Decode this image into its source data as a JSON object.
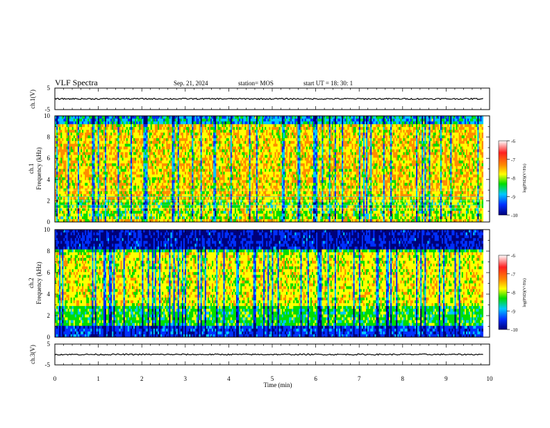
{
  "header": {
    "title": "VLF Spectra",
    "date": "Sep. 21, 2024",
    "station": "station= MOS",
    "start": "start  UT =   18: 30: 1"
  },
  "panels": {
    "ch1_waveform_label": "ch.1(V)",
    "ch1_spec_label_a": "ch.1",
    "ch1_spec_label_b": "Frequency (kHz)",
    "ch2_spec_label_a": "ch.2",
    "ch2_spec_label_b": "Frequency (kHz)",
    "ch3_waveform_label": "ch.3(V)",
    "xlabel": "Time (min)"
  },
  "colorbar": {
    "label": "log(PSD)(V²/Hz)",
    "ticks": [
      "-6",
      "-7",
      "-8",
      "-9",
      "-10"
    ],
    "colors": [
      "#ffffff",
      "#ff2020",
      "#ff8c00",
      "#ffff00",
      "#00dd00",
      "#00c8ff",
      "#0030ff",
      "#00007a"
    ]
  },
  "chart_data": [
    {
      "type": "line",
      "panel": "ch.1 waveform",
      "ylabel": "ch.1(V)",
      "ylim": [
        -5,
        5
      ],
      "yticks": [
        "5",
        "-5"
      ],
      "xlim": [
        0,
        10
      ],
      "description_values": {
        "x": [
          0,
          9.85
        ],
        "y": [
          0,
          0
        ]
      }
    },
    {
      "type": "heatmap",
      "panel": "ch.1 spectrogram",
      "ylabel": "Frequency (kHz)",
      "ylim": [
        0,
        10
      ],
      "yticks": [
        "0",
        "2",
        "4",
        "6",
        "8",
        "10"
      ],
      "xlim": [
        0,
        10
      ],
      "time_extent_min": 9.85,
      "clim": [
        -10,
        -6
      ]
    },
    {
      "type": "heatmap",
      "panel": "ch.2 spectrogram",
      "ylabel": "Frequency (kHz)",
      "ylim": [
        0,
        10
      ],
      "yticks": [
        "0",
        "2",
        "4",
        "6",
        "8",
        "10"
      ],
      "xlim": [
        0,
        10
      ],
      "time_extent_min": 9.85,
      "clim": [
        -10,
        -6
      ]
    },
    {
      "type": "line",
      "panel": "ch.3 waveform",
      "ylabel": "ch.3(V)",
      "ylim": [
        -5,
        5
      ],
      "yticks": [
        "5",
        "-5"
      ],
      "xlim": [
        0,
        10
      ],
      "description_values": {
        "x": [
          0,
          9.85
        ],
        "y": [
          0,
          0
        ]
      }
    },
    {
      "type": "axis",
      "xlabel": "Time (min)",
      "xticks": [
        "0",
        "1",
        "2",
        "3",
        "4",
        "5",
        "6",
        "7",
        "8",
        "9",
        "10"
      ]
    }
  ]
}
